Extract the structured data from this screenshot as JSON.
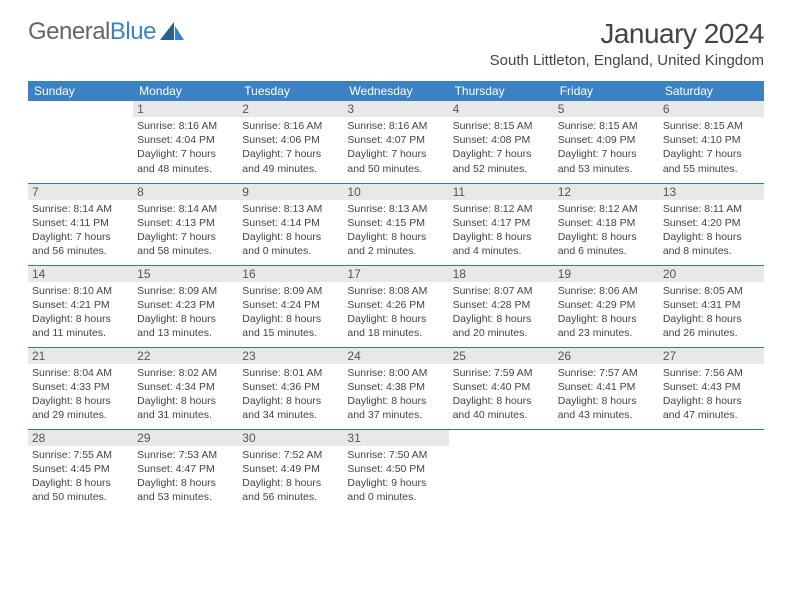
{
  "logo": {
    "text1": "General",
    "text2": "Blue"
  },
  "title": "January 2024",
  "location": "South Littleton, England, United Kingdom",
  "colors": {
    "header_bg": "#3b82c4",
    "header_text": "#ffffff",
    "daynum_bg": "#e8e8e8",
    "rule": "#3b72a8",
    "body_text": "#444444"
  },
  "weekdays": [
    "Sunday",
    "Monday",
    "Tuesday",
    "Wednesday",
    "Thursday",
    "Friday",
    "Saturday"
  ],
  "weeks": [
    [
      {
        "n": "",
        "sr": "",
        "ss": "",
        "dl": ""
      },
      {
        "n": "1",
        "sr": "8:16 AM",
        "ss": "4:04 PM",
        "dl": "7 hours and 48 minutes."
      },
      {
        "n": "2",
        "sr": "8:16 AM",
        "ss": "4:06 PM",
        "dl": "7 hours and 49 minutes."
      },
      {
        "n": "3",
        "sr": "8:16 AM",
        "ss": "4:07 PM",
        "dl": "7 hours and 50 minutes."
      },
      {
        "n": "4",
        "sr": "8:15 AM",
        "ss": "4:08 PM",
        "dl": "7 hours and 52 minutes."
      },
      {
        "n": "5",
        "sr": "8:15 AM",
        "ss": "4:09 PM",
        "dl": "7 hours and 53 minutes."
      },
      {
        "n": "6",
        "sr": "8:15 AM",
        "ss": "4:10 PM",
        "dl": "7 hours and 55 minutes."
      }
    ],
    [
      {
        "n": "7",
        "sr": "8:14 AM",
        "ss": "4:11 PM",
        "dl": "7 hours and 56 minutes."
      },
      {
        "n": "8",
        "sr": "8:14 AM",
        "ss": "4:13 PM",
        "dl": "7 hours and 58 minutes."
      },
      {
        "n": "9",
        "sr": "8:13 AM",
        "ss": "4:14 PM",
        "dl": "8 hours and 0 minutes."
      },
      {
        "n": "10",
        "sr": "8:13 AM",
        "ss": "4:15 PM",
        "dl": "8 hours and 2 minutes."
      },
      {
        "n": "11",
        "sr": "8:12 AM",
        "ss": "4:17 PM",
        "dl": "8 hours and 4 minutes."
      },
      {
        "n": "12",
        "sr": "8:12 AM",
        "ss": "4:18 PM",
        "dl": "8 hours and 6 minutes."
      },
      {
        "n": "13",
        "sr": "8:11 AM",
        "ss": "4:20 PM",
        "dl": "8 hours and 8 minutes."
      }
    ],
    [
      {
        "n": "14",
        "sr": "8:10 AM",
        "ss": "4:21 PM",
        "dl": "8 hours and 11 minutes."
      },
      {
        "n": "15",
        "sr": "8:09 AM",
        "ss": "4:23 PM",
        "dl": "8 hours and 13 minutes."
      },
      {
        "n": "16",
        "sr": "8:09 AM",
        "ss": "4:24 PM",
        "dl": "8 hours and 15 minutes."
      },
      {
        "n": "17",
        "sr": "8:08 AM",
        "ss": "4:26 PM",
        "dl": "8 hours and 18 minutes."
      },
      {
        "n": "18",
        "sr": "8:07 AM",
        "ss": "4:28 PM",
        "dl": "8 hours and 20 minutes."
      },
      {
        "n": "19",
        "sr": "8:06 AM",
        "ss": "4:29 PM",
        "dl": "8 hours and 23 minutes."
      },
      {
        "n": "20",
        "sr": "8:05 AM",
        "ss": "4:31 PM",
        "dl": "8 hours and 26 minutes."
      }
    ],
    [
      {
        "n": "21",
        "sr": "8:04 AM",
        "ss": "4:33 PM",
        "dl": "8 hours and 29 minutes."
      },
      {
        "n": "22",
        "sr": "8:02 AM",
        "ss": "4:34 PM",
        "dl": "8 hours and 31 minutes."
      },
      {
        "n": "23",
        "sr": "8:01 AM",
        "ss": "4:36 PM",
        "dl": "8 hours and 34 minutes."
      },
      {
        "n": "24",
        "sr": "8:00 AM",
        "ss": "4:38 PM",
        "dl": "8 hours and 37 minutes."
      },
      {
        "n": "25",
        "sr": "7:59 AM",
        "ss": "4:40 PM",
        "dl": "8 hours and 40 minutes."
      },
      {
        "n": "26",
        "sr": "7:57 AM",
        "ss": "4:41 PM",
        "dl": "8 hours and 43 minutes."
      },
      {
        "n": "27",
        "sr": "7:56 AM",
        "ss": "4:43 PM",
        "dl": "8 hours and 47 minutes."
      }
    ],
    [
      {
        "n": "28",
        "sr": "7:55 AM",
        "ss": "4:45 PM",
        "dl": "8 hours and 50 minutes."
      },
      {
        "n": "29",
        "sr": "7:53 AM",
        "ss": "4:47 PM",
        "dl": "8 hours and 53 minutes."
      },
      {
        "n": "30",
        "sr": "7:52 AM",
        "ss": "4:49 PM",
        "dl": "8 hours and 56 minutes."
      },
      {
        "n": "31",
        "sr": "7:50 AM",
        "ss": "4:50 PM",
        "dl": "9 hours and 0 minutes."
      },
      {
        "n": "",
        "sr": "",
        "ss": "",
        "dl": ""
      },
      {
        "n": "",
        "sr": "",
        "ss": "",
        "dl": ""
      },
      {
        "n": "",
        "sr": "",
        "ss": "",
        "dl": ""
      }
    ]
  ],
  "labels": {
    "sunrise": "Sunrise:",
    "sunset": "Sunset:",
    "daylight": "Daylight:"
  }
}
